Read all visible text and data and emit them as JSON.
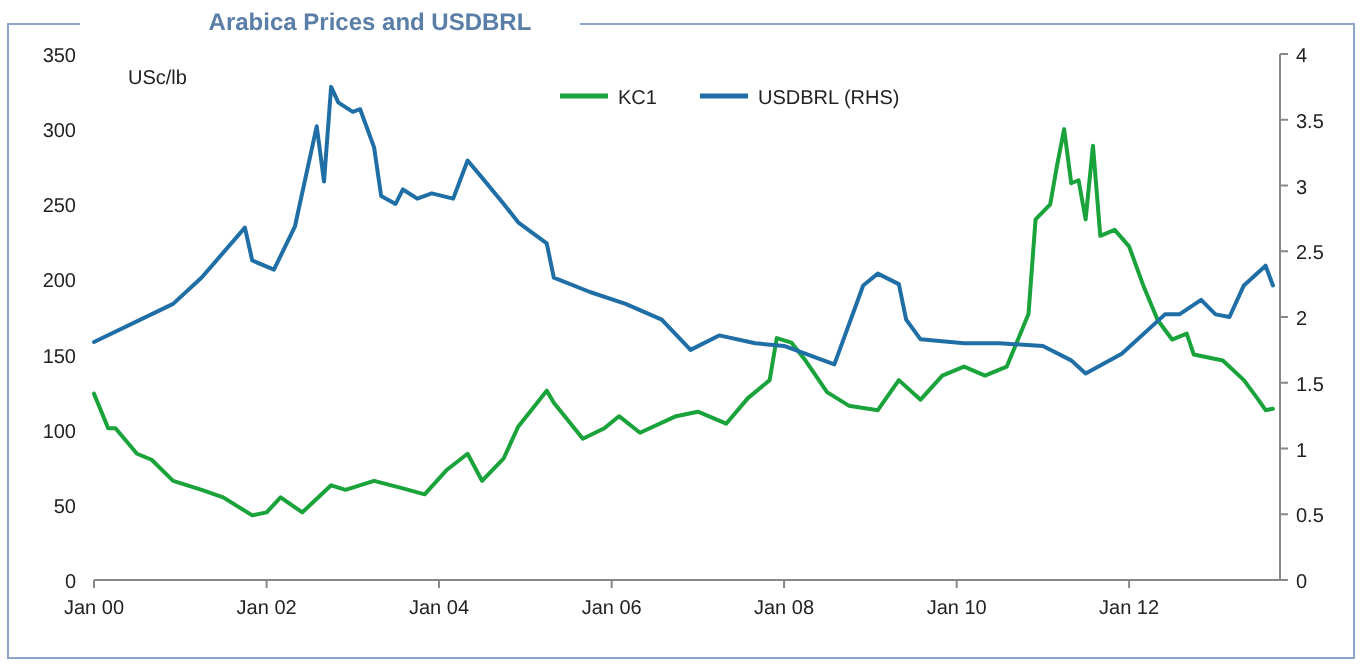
{
  "chart_data": {
    "type": "line",
    "title": "Arabica Prices and USDBRL",
    "ylabel": "USc/lb",
    "legend": "top",
    "grid": false,
    "xlim": [
      "2000-01",
      "2013-10"
    ],
    "xticks": [
      {
        "value": "2000-01",
        "label": "Jan 00"
      },
      {
        "value": "2002-01",
        "label": "Jan 02"
      },
      {
        "value": "2004-01",
        "label": "Jan 04"
      },
      {
        "value": "2006-01",
        "label": "Jan 06"
      },
      {
        "value": "2008-01",
        "label": "Jan 08"
      },
      {
        "value": "2010-01",
        "label": "Jan 10"
      },
      {
        "value": "2012-01",
        "label": "Jan 12"
      }
    ],
    "ylim": [
      0,
      350
    ],
    "yticks": [
      0,
      50,
      100,
      150,
      200,
      250,
      300,
      350
    ],
    "y2lim": [
      0,
      4
    ],
    "y2ticks": [
      0,
      0.5,
      1,
      1.5,
      2,
      2.5,
      3,
      3.5,
      4
    ],
    "series": [
      {
        "name": "KC1",
        "color": "#1aa33b",
        "x": [
          "2000-01",
          "2000-03",
          "2000-04",
          "2000-07",
          "2000-09",
          "2000-12",
          "2001-04",
          "2001-07",
          "2001-11",
          "2002-01",
          "2002-03",
          "2002-06",
          "2002-10",
          "2002-12",
          "2003-04",
          "2003-08",
          "2003-11",
          "2004-02",
          "2004-05",
          "2004-07",
          "2004-10",
          "2004-12",
          "2005-04",
          "2005-05",
          "2005-09",
          "2005-12",
          "2006-02",
          "2006-05",
          "2006-10",
          "2007-01",
          "2007-05",
          "2007-08",
          "2007-11",
          "2007-12",
          "2008-02",
          "2008-04",
          "2008-07",
          "2008-10",
          "2009-02",
          "2009-05",
          "2009-08",
          "2009-11",
          "2010-02",
          "2010-05",
          "2010-08",
          "2010-11",
          "2010-12",
          "2011-02",
          "2011-03",
          "2011-04",
          "2011-05",
          "2011-06",
          "2011-07",
          "2011-08",
          "2011-09",
          "2011-11",
          "2012-01",
          "2012-03",
          "2012-05",
          "2012-07",
          "2012-09",
          "2012-10",
          "2013-02",
          "2013-05",
          "2013-07",
          "2013-08",
          "2013-09"
        ],
        "values": [
          124,
          101,
          101,
          84,
          80,
          66,
          60,
          55,
          43,
          45,
          55,
          45,
          63,
          60,
          66,
          61,
          57,
          73,
          84,
          66,
          81,
          102,
          126,
          118,
          94,
          101,
          109,
          98,
          109,
          112,
          104,
          121,
          133,
          161,
          158,
          146,
          125,
          116,
          113,
          133,
          120,
          136,
          142,
          136,
          142,
          177,
          240,
          250,
          275,
          300,
          264,
          266,
          240,
          289,
          229,
          233,
          222,
          196,
          173,
          160,
          164,
          150,
          146,
          133,
          120,
          113,
          114
        ]
      },
      {
        "name": "USDBRL (RHS)",
        "color": "#1f6fa6",
        "axis": "y2",
        "x": [
          "2000-01",
          "2000-12",
          "2001-04",
          "2001-10",
          "2001-11",
          "2002-02",
          "2002-05",
          "2002-08",
          "2002-09",
          "2002-10",
          "2002-11",
          "2003-01",
          "2003-02",
          "2003-04",
          "2003-05",
          "2003-07",
          "2003-08",
          "2003-10",
          "2003-12",
          "2004-03",
          "2004-05",
          "2004-07",
          "2004-10",
          "2004-12",
          "2005-04",
          "2005-05",
          "2005-10",
          "2006-03",
          "2006-08",
          "2006-12",
          "2007-04",
          "2007-09",
          "2008-01",
          "2008-05",
          "2008-08",
          "2008-12",
          "2009-02",
          "2009-05",
          "2009-06",
          "2009-08",
          "2010-02",
          "2010-07",
          "2011-01",
          "2011-05",
          "2011-07",
          "2011-12",
          "2012-06",
          "2012-08",
          "2012-11",
          "2013-01",
          "2013-03",
          "2013-05",
          "2013-08",
          "2013-09"
        ],
        "values": [
          1.81,
          2.1,
          2.3,
          2.68,
          2.43,
          2.36,
          2.69,
          3.45,
          3.03,
          3.75,
          3.63,
          3.56,
          3.58,
          3.29,
          2.92,
          2.86,
          2.97,
          2.9,
          2.94,
          2.9,
          3.19,
          3.06,
          2.86,
          2.72,
          2.56,
          2.3,
          2.19,
          2.1,
          1.98,
          1.75,
          1.86,
          1.8,
          1.78,
          1.7,
          1.64,
          2.24,
          2.33,
          2.25,
          1.98,
          1.83,
          1.8,
          1.8,
          1.78,
          1.67,
          1.57,
          1.72,
          2.02,
          2.02,
          2.13,
          2.02,
          2.0,
          2.24,
          2.39,
          2.24
        ]
      }
    ]
  }
}
